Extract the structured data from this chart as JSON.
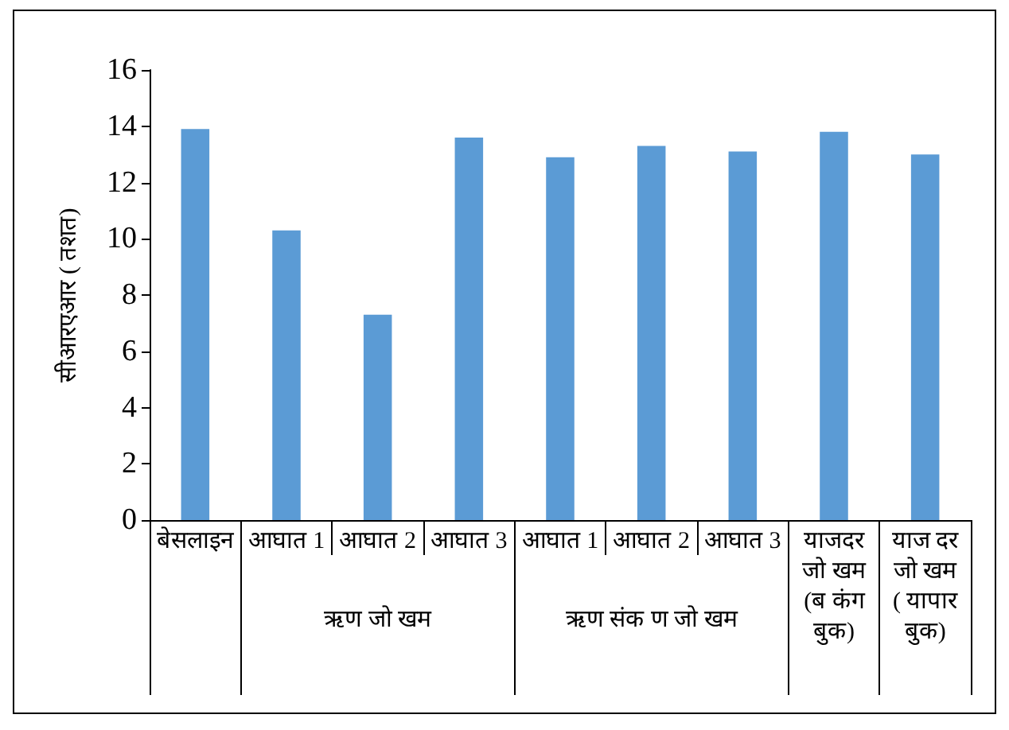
{
  "chart_data": {
    "type": "bar",
    "ylabel": "सीआरएआर ( तशत)",
    "categories": [
      "बेसलाइन",
      "आघात 1",
      "आघात 2",
      "आघात 3",
      "आघात 1",
      "आघात 2",
      "आघात 3",
      "याजदर\nजो खम\n(ब कंग\nबुक)",
      "याज दर\nजो खम\n( यापार\nबुक)"
    ],
    "values": [
      13.9,
      10.3,
      7.3,
      13.6,
      12.9,
      13.3,
      13.1,
      13.8,
      13.0
    ],
    "color": "#5b9bd5",
    "ylim": [
      0,
      16
    ],
    "yticks": [
      0,
      2,
      4,
      6,
      8,
      10,
      12,
      14,
      16
    ],
    "grid": false,
    "annotations": [
      "ऋण जो खम",
      "ऋण संक ण जो खम"
    ]
  }
}
